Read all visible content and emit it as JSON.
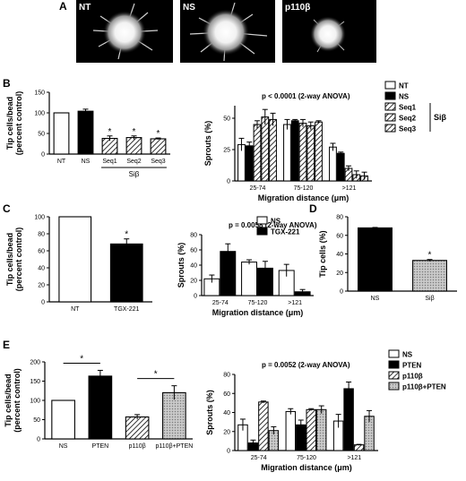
{
  "panel_letters": {
    "A": "A",
    "B": "B",
    "C": "C",
    "D": "D",
    "E": "E"
  },
  "photos": [
    {
      "label": "NT"
    },
    {
      "label": "NS"
    },
    {
      "label": "p110β"
    }
  ],
  "chart_data": [
    {
      "id": "B1",
      "type": "bar",
      "ylabel": "Tip cells/bead\n(percent control)",
      "ylim": [
        0,
        150
      ],
      "yticks": [
        0,
        50,
        100,
        150
      ],
      "categories": [
        "NT",
        "NS",
        "Seq1",
        "Seq2",
        "Seq3"
      ],
      "values": [
        100,
        104,
        38,
        40,
        37
      ],
      "errors": [
        0,
        5,
        6,
        4,
        2
      ],
      "fills": [
        "white",
        "black",
        "hatch",
        "hatch",
        "hatch"
      ],
      "sig": [
        "",
        "",
        "*",
        "*",
        "*"
      ],
      "group_label": {
        "text": "Siβ",
        "from": 2,
        "to": 4
      }
    },
    {
      "id": "B2",
      "type": "bar",
      "annotation": "p < 0.0001 (2-way ANOVA)",
      "xlabel": "Migration distance (μm)",
      "ylabel": "Sprouts (%)",
      "ylim": [
        0,
        60
      ],
      "yticks": [
        0,
        25,
        50
      ],
      "categories": [
        "25-74",
        "75-120",
        ">121"
      ],
      "series": [
        {
          "name": "NT",
          "fill": "white",
          "values": [
            29,
            45,
            27
          ],
          "errors": [
            5,
            4,
            3
          ]
        },
        {
          "name": "NS",
          "fill": "black",
          "values": [
            28,
            48,
            22
          ],
          "errors": [
            3,
            1,
            1
          ]
        },
        {
          "name": "Seq1",
          "fill": "hatch",
          "values": [
            45,
            46,
            10
          ],
          "errors": [
            3,
            3,
            2
          ]
        },
        {
          "name": "Seq2",
          "fill": "hatch",
          "values": [
            51,
            44,
            5
          ],
          "errors": [
            6,
            3,
            3
          ]
        },
        {
          "name": "Seq3",
          "fill": "hatch",
          "values": [
            49,
            47,
            4
          ],
          "errors": [
            5,
            1,
            3
          ]
        }
      ],
      "legend_bracket": "Siβ"
    },
    {
      "id": "C1",
      "type": "bar",
      "ylabel": "Tip cells/bead\n(percent control)",
      "ylim": [
        0,
        100
      ],
      "yticks": [
        0,
        20,
        40,
        60,
        80,
        100
      ],
      "categories": [
        "NT",
        "TGX-221"
      ],
      "values": [
        100,
        68
      ],
      "errors": [
        0,
        6
      ],
      "fills": [
        "white",
        "black"
      ],
      "sig": [
        "",
        "*"
      ]
    },
    {
      "id": "C2",
      "type": "bar",
      "annotation": "p = 0.0058 (2-way ANOVA)",
      "xlabel": "Migration distance (μm)",
      "ylabel": "Sprouts (%)",
      "ylim": [
        0,
        80
      ],
      "yticks": [
        0,
        20,
        40,
        60,
        80
      ],
      "categories": [
        "25-74",
        "75-120",
        ">121"
      ],
      "series": [
        {
          "name": "NS",
          "fill": "white",
          "values": [
            22,
            44,
            33
          ],
          "errors": [
            5,
            3,
            8
          ]
        },
        {
          "name": "TGX-221",
          "fill": "black",
          "values": [
            58,
            36,
            5
          ],
          "errors": [
            10,
            9,
            3
          ]
        }
      ]
    },
    {
      "id": "D",
      "type": "bar",
      "ylabel": "Tip cells (%)",
      "ylim": [
        0,
        80
      ],
      "yticks": [
        0,
        20,
        40,
        60,
        80
      ],
      "categories": [
        "NS",
        "Siβ"
      ],
      "values": [
        68,
        33
      ],
      "errors": [
        0.5,
        1
      ],
      "fills": [
        "black",
        "stipple"
      ],
      "sig": [
        "",
        "*"
      ]
    },
    {
      "id": "E1",
      "type": "bar",
      "ylabel": "Tip cells/bead\n(percent control)",
      "ylim": [
        0,
        200
      ],
      "yticks": [
        0,
        50,
        100,
        150,
        200
      ],
      "categories": [
        "NS",
        "PTEN",
        "p110β",
        "p110β+PTEN"
      ],
      "values": [
        100,
        163,
        57,
        120
      ],
      "errors": [
        0,
        15,
        6,
        18
      ],
      "fills": [
        "white",
        "black",
        "hatch",
        "stipple"
      ],
      "brackets": [
        {
          "from": 0,
          "to": 1,
          "text": "*"
        },
        {
          "from": 2,
          "to": 3,
          "text": "*"
        }
      ]
    },
    {
      "id": "E2",
      "type": "bar",
      "annotation": "p = 0.0052 (2-way ANOVA)",
      "xlabel": "Migration distance (μm)",
      "ylabel": "Sprouts (%)",
      "ylim": [
        0,
        80
      ],
      "yticks": [
        0,
        20,
        40,
        60,
        80
      ],
      "categories": [
        "25-74",
        "75-120",
        ">121"
      ],
      "series": [
        {
          "name": "NS",
          "fill": "white",
          "values": [
            27,
            41,
            31
          ],
          "errors": [
            6,
            3,
            7
          ]
        },
        {
          "name": "PTEN",
          "fill": "black",
          "values": [
            8,
            27,
            65
          ],
          "errors": [
            3,
            5,
            7
          ]
        },
        {
          "name": "p110β",
          "fill": "hatch",
          "values": [
            51,
            43,
            6
          ],
          "errors": [
            1,
            1,
            0.5
          ]
        },
        {
          "name": "p110β+PTEN",
          "fill": "stipple",
          "values": [
            21,
            43,
            36
          ],
          "errors": [
            4,
            4,
            6
          ]
        }
      ]
    }
  ]
}
